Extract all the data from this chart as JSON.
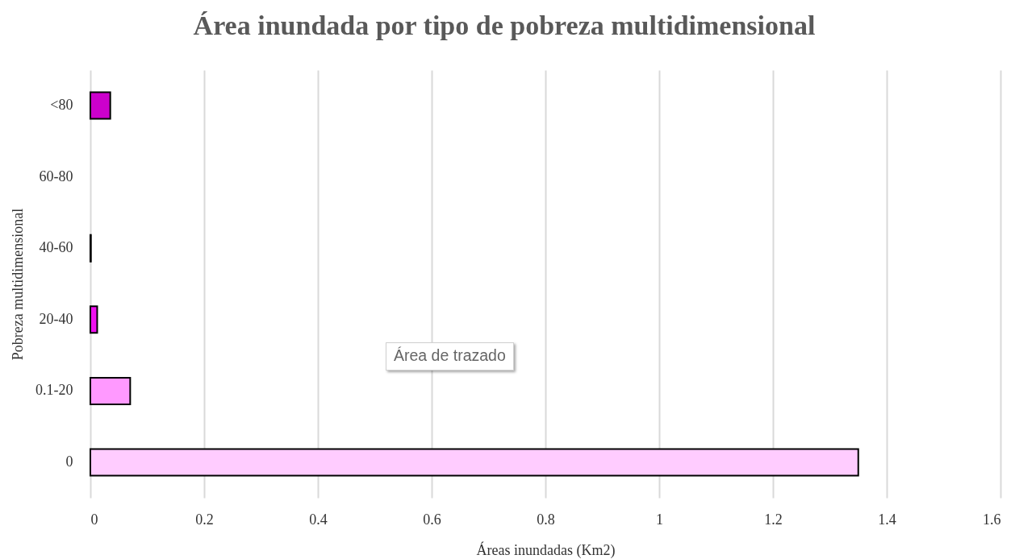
{
  "chart_data": {
    "type": "bar",
    "orientation": "horizontal",
    "title": "Área inundada por tipo de pobreza multidimensional",
    "xlabel": "Áreas inundadas (Km2)",
    "ylabel": "Pobreza multidimensional",
    "categories": [
      "<80",
      "60-80",
      "40-60",
      "20-40",
      "0.1-20",
      "0"
    ],
    "values": [
      0.035,
      null,
      0.001,
      0.012,
      0.07,
      1.35
    ],
    "colors": [
      "#cc00cc",
      "#ff66ff",
      "#ee22ee",
      "#ee11ee",
      "#ff99ff",
      "#ffccff"
    ],
    "xlim": [
      0,
      1.6
    ],
    "xticks": [
      0,
      0.2,
      0.4,
      0.6,
      0.8,
      1,
      1.2,
      1.4,
      1.6
    ],
    "grid": "x",
    "legend": false,
    "annotations": [
      "Área de trazado"
    ]
  }
}
